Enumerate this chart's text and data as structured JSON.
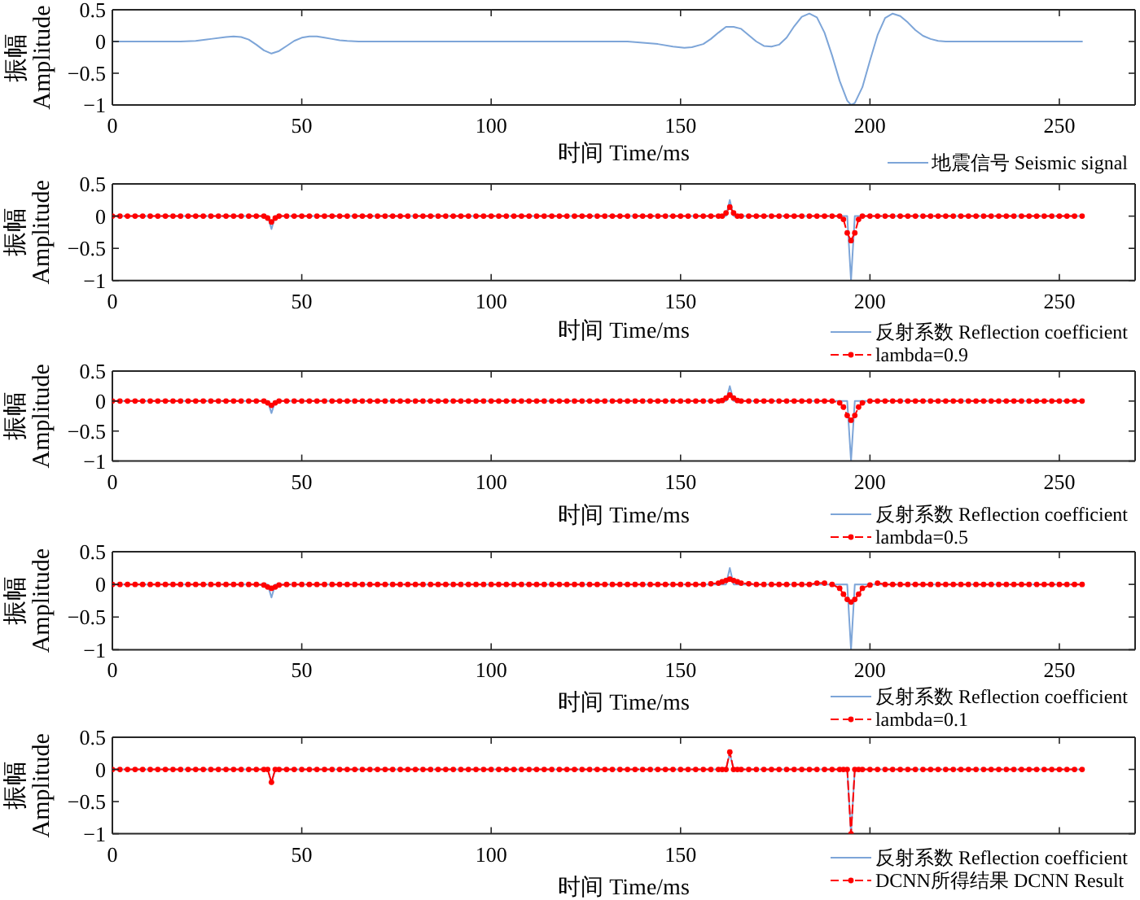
{
  "chart_data": [
    {
      "type": "line",
      "xlabel": "时间 Time/ms",
      "ylabel": "振幅\nAmplitude",
      "xlim": [
        0,
        270
      ],
      "xticks": [
        0,
        50,
        100,
        150,
        200,
        250
      ],
      "ylim": [
        -1,
        0.5
      ],
      "yticks": [
        -1,
        -0.5,
        0,
        0.5
      ],
      "legend": "bottom right",
      "x": [
        0,
        10,
        18,
        22,
        26,
        30,
        32,
        34,
        36,
        38,
        40,
        42,
        44,
        46,
        48,
        50,
        52,
        54,
        56,
        58,
        60,
        62,
        65,
        80,
        100,
        120,
        130,
        136,
        140,
        144,
        148,
        151,
        153,
        156,
        158,
        160,
        162,
        164,
        166,
        168,
        170,
        172,
        174,
        176,
        178,
        180,
        182,
        184,
        186,
        188,
        190,
        192,
        194,
        195,
        196,
        198,
        200,
        202,
        204,
        206,
        208,
        210,
        212,
        214,
        216,
        218,
        220,
        230,
        240,
        256
      ],
      "series": [
        {
          "name": "地震信号 Seismic signal",
          "color": "#7da5d8",
          "values": [
            0,
            0,
            0,
            0.01,
            0.04,
            0.07,
            0.08,
            0.07,
            0.03,
            -0.05,
            -0.14,
            -0.19,
            -0.15,
            -0.07,
            0.01,
            0.06,
            0.08,
            0.08,
            0.06,
            0.04,
            0.02,
            0.01,
            0,
            0,
            0,
            0,
            0,
            0,
            -0.02,
            -0.04,
            -0.08,
            -0.1,
            -0.09,
            -0.04,
            0.04,
            0.14,
            0.23,
            0.23,
            0.2,
            0.1,
            0,
            -0.07,
            -0.08,
            -0.05,
            0.06,
            0.24,
            0.39,
            0.44,
            0.38,
            0.14,
            -0.22,
            -0.62,
            -0.93,
            -1,
            -0.97,
            -0.72,
            -0.3,
            0.1,
            0.37,
            0.44,
            0.4,
            0.3,
            0.18,
            0.09,
            0.04,
            0.01,
            0,
            0,
            0,
            0
          ]
        }
      ]
    },
    {
      "type": "line",
      "xlabel": "时间 Time/ms",
      "ylabel": "振幅\nAmplitude",
      "xlim": [
        0,
        270
      ],
      "xticks": [
        0,
        50,
        100,
        150,
        200,
        250
      ],
      "ylim": [
        -1,
        0.5
      ],
      "yticks": [
        -1,
        -0.5,
        0,
        0.5
      ],
      "legend": "bottom right",
      "x": [
        0,
        2,
        4,
        6,
        8,
        10,
        12,
        14,
        16,
        18,
        20,
        22,
        24,
        26,
        28,
        30,
        32,
        34,
        36,
        38,
        40,
        41,
        42,
        43,
        44,
        46,
        48,
        50,
        52,
        54,
        56,
        58,
        60,
        62,
        64,
        66,
        68,
        70,
        72,
        74,
        76,
        78,
        80,
        82,
        84,
        86,
        88,
        90,
        92,
        94,
        96,
        98,
        100,
        102,
        104,
        106,
        108,
        110,
        112,
        114,
        116,
        118,
        120,
        122,
        124,
        126,
        128,
        130,
        132,
        134,
        136,
        138,
        140,
        142,
        144,
        146,
        148,
        150,
        152,
        154,
        156,
        158,
        160,
        161,
        162,
        163,
        164,
        165,
        166,
        168,
        170,
        172,
        174,
        176,
        178,
        180,
        182,
        184,
        186,
        188,
        190,
        192,
        193,
        194,
        195,
        196,
        197,
        198,
        200,
        202,
        204,
        206,
        208,
        210,
        212,
        214,
        216,
        218,
        220,
        222,
        224,
        226,
        228,
        230,
        232,
        234,
        236,
        238,
        240,
        242,
        244,
        246,
        248,
        250,
        252,
        254,
        256
      ],
      "series": [
        {
          "name": "反射系数 Reflection coefficient",
          "color": "#7da5d8",
          "x": [
            0,
            41,
            42,
            43,
            162,
            163,
            164,
            194,
            195,
            196,
            256
          ],
          "values": [
            0,
            0,
            -0.2,
            0,
            0,
            0.25,
            0,
            0,
            -1,
            0,
            0
          ]
        },
        {
          "name": "lambda=0.9",
          "color": "#ff0000",
          "line_style": "dashed",
          "marker": "circle",
          "values": [
            0,
            0,
            0,
            0,
            0,
            0,
            0,
            0,
            0,
            0,
            0,
            0,
            0,
            0,
            0,
            0,
            0,
            0,
            0,
            0,
            0,
            -0.03,
            -0.09,
            -0.03,
            0,
            0,
            0,
            0,
            0,
            0,
            0,
            0,
            0,
            0,
            0,
            0,
            0,
            0,
            0,
            0,
            0,
            0,
            0,
            0,
            0,
            0,
            0,
            0,
            0,
            0,
            0,
            0,
            0,
            0,
            0,
            0,
            0,
            0,
            0,
            0,
            0,
            0,
            0,
            0,
            0,
            0,
            0,
            0,
            0,
            0,
            0,
            0,
            0,
            0,
            0,
            0,
            0,
            0,
            0,
            0,
            0,
            0,
            0,
            0,
            0.05,
            0.14,
            0.05,
            0,
            0,
            0,
            0,
            0,
            0,
            0,
            0,
            0,
            0,
            0,
            0,
            0,
            0,
            0,
            -0.05,
            -0.26,
            -0.38,
            -0.26,
            -0.05,
            0,
            0,
            0,
            0,
            0,
            0,
            0,
            0,
            0,
            0,
            0,
            0,
            0,
            0,
            0,
            0,
            0,
            0,
            0,
            0,
            0,
            0,
            0,
            0,
            0,
            0,
            0,
            0,
            0,
            0
          ]
        }
      ]
    },
    {
      "type": "line",
      "xlabel": "时间 Time/ms",
      "ylabel": "振幅\nAmplitude",
      "xlim": [
        0,
        270
      ],
      "xticks": [
        0,
        50,
        100,
        150,
        200,
        250
      ],
      "ylim": [
        -1,
        0.5
      ],
      "yticks": [
        -1,
        -0.5,
        0,
        0.5
      ],
      "legend": "bottom right",
      "x": [
        0,
        2,
        4,
        6,
        8,
        10,
        12,
        14,
        16,
        18,
        20,
        22,
        24,
        26,
        28,
        30,
        32,
        34,
        36,
        38,
        40,
        41,
        42,
        43,
        44,
        46,
        48,
        50,
        52,
        54,
        56,
        58,
        60,
        62,
        64,
        66,
        68,
        70,
        72,
        74,
        76,
        78,
        80,
        82,
        84,
        86,
        88,
        90,
        92,
        94,
        96,
        98,
        100,
        102,
        104,
        106,
        108,
        110,
        112,
        114,
        116,
        118,
        120,
        122,
        124,
        126,
        128,
        130,
        132,
        134,
        136,
        138,
        140,
        142,
        144,
        146,
        148,
        150,
        152,
        154,
        156,
        158,
        160,
        161,
        162,
        163,
        164,
        165,
        166,
        168,
        170,
        172,
        174,
        176,
        178,
        180,
        182,
        184,
        186,
        188,
        190,
        192,
        193,
        194,
        195,
        196,
        197,
        198,
        200,
        202,
        204,
        206,
        208,
        210,
        212,
        214,
        216,
        218,
        220,
        222,
        224,
        226,
        228,
        230,
        232,
        234,
        236,
        238,
        240,
        242,
        244,
        246,
        248,
        250,
        252,
        254,
        256
      ],
      "series": [
        {
          "name": "反射系数 Reflection coefficient",
          "color": "#7da5d8",
          "x": [
            0,
            41,
            42,
            43,
            162,
            163,
            164,
            194,
            195,
            196,
            256
          ],
          "values": [
            0,
            0,
            -0.2,
            0,
            0,
            0.25,
            0,
            0,
            -1,
            0,
            0
          ]
        },
        {
          "name": "lambda=0.5",
          "color": "#ff0000",
          "line_style": "dashed",
          "marker": "circle",
          "values": [
            0,
            0,
            0,
            0,
            0,
            0,
            0,
            0,
            0,
            0,
            0,
            0,
            0,
            0,
            0,
            0,
            0,
            0,
            0,
            0,
            0,
            -0.03,
            -0.07,
            -0.03,
            0,
            0,
            0,
            0,
            0,
            0,
            0,
            0,
            0,
            0,
            0,
            0,
            0,
            0,
            0,
            0,
            0,
            0,
            0,
            0,
            0,
            0,
            0,
            0,
            0,
            0,
            0,
            0,
            0,
            0,
            0,
            0,
            0,
            0,
            0,
            0,
            0,
            0,
            0,
            0,
            0,
            0,
            0,
            0,
            0,
            0,
            0,
            0,
            0,
            0,
            0,
            0,
            0,
            0,
            0,
            0,
            0,
            0,
            0,
            0.01,
            0.05,
            0.1,
            0.05,
            0.01,
            0,
            0,
            0,
            0,
            0,
            0,
            0,
            0,
            0,
            0,
            0,
            0,
            0,
            -0.03,
            -0.1,
            -0.24,
            -0.32,
            -0.24,
            -0.1,
            -0.03,
            0,
            0,
            0,
            0,
            0,
            0,
            0,
            0,
            0,
            0,
            0,
            0,
            0,
            0,
            0,
            0,
            0,
            0,
            0,
            0,
            0,
            0,
            0,
            0,
            0,
            0,
            0,
            0,
            0
          ]
        }
      ]
    },
    {
      "type": "line",
      "xlabel": "时间 Time/ms",
      "ylabel": "振幅\nAmplitude",
      "xlim": [
        0,
        270
      ],
      "xticks": [
        0,
        50,
        100,
        150,
        200,
        250
      ],
      "ylim": [
        -1,
        0.5
      ],
      "yticks": [
        -1,
        -0.5,
        0,
        0.5
      ],
      "legend": "bottom right",
      "x": [
        0,
        2,
        4,
        6,
        8,
        10,
        12,
        14,
        16,
        18,
        20,
        22,
        24,
        26,
        28,
        30,
        32,
        34,
        36,
        38,
        40,
        41,
        42,
        43,
        44,
        46,
        48,
        50,
        52,
        54,
        56,
        58,
        60,
        62,
        64,
        66,
        68,
        70,
        72,
        74,
        76,
        78,
        80,
        82,
        84,
        86,
        88,
        90,
        92,
        94,
        96,
        98,
        100,
        102,
        104,
        106,
        108,
        110,
        112,
        114,
        116,
        118,
        120,
        122,
        124,
        126,
        128,
        130,
        132,
        134,
        136,
        138,
        140,
        142,
        144,
        146,
        148,
        150,
        152,
        154,
        156,
        158,
        160,
        161,
        162,
        163,
        164,
        165,
        166,
        168,
        170,
        172,
        174,
        176,
        178,
        180,
        182,
        184,
        186,
        188,
        190,
        192,
        193,
        194,
        195,
        196,
        197,
        198,
        200,
        202,
        204,
        206,
        208,
        210,
        212,
        214,
        216,
        218,
        220,
        222,
        224,
        226,
        228,
        230,
        232,
        234,
        236,
        238,
        240,
        242,
        244,
        246,
        248,
        250,
        252,
        254,
        256
      ],
      "series": [
        {
          "name": "反射系数 Reflection coefficient",
          "color": "#7da5d8",
          "x": [
            0,
            41,
            42,
            43,
            162,
            163,
            164,
            194,
            195,
            196,
            256
          ],
          "values": [
            0,
            0,
            -0.2,
            0,
            0,
            0.25,
            0,
            0,
            -1,
            0,
            0
          ]
        },
        {
          "name": "lambda=0.1",
          "color": "#ff0000",
          "line_style": "dashed",
          "marker": "circle",
          "values": [
            0,
            0,
            0,
            0,
            0,
            0,
            0,
            0,
            0,
            0,
            0,
            0,
            0,
            0,
            0,
            0,
            0,
            0,
            0,
            0,
            -0.01,
            -0.04,
            -0.06,
            -0.04,
            -0.01,
            0,
            0,
            0,
            0,
            0,
            0,
            0,
            0,
            0,
            0,
            0,
            0,
            0,
            0,
            0,
            0,
            0,
            0,
            0,
            0,
            0,
            0,
            0,
            0,
            0,
            0,
            0,
            0,
            0,
            0,
            0,
            0,
            0,
            0,
            0,
            0,
            0,
            0,
            0,
            0,
            0,
            0,
            0,
            0,
            0,
            0,
            0,
            0,
            0,
            0,
            0,
            0,
            0,
            0,
            0,
            0,
            0.01,
            0.02,
            0.04,
            0.06,
            0.08,
            0.06,
            0.04,
            0.02,
            0.01,
            0,
            0,
            0,
            0,
            0,
            0,
            0,
            0,
            0.02,
            0.02,
            0,
            -0.06,
            -0.15,
            -0.23,
            -0.27,
            -0.23,
            -0.15,
            -0.06,
            -0.01,
            0.02,
            0,
            0,
            0,
            0,
            0,
            0,
            0,
            0,
            0,
            0,
            0,
            0,
            0,
            0,
            0,
            0,
            0,
            0,
            0,
            0,
            0,
            0,
            0,
            0,
            0,
            0,
            0
          ]
        }
      ]
    },
    {
      "type": "line",
      "xlabel": "时间 Time/ms",
      "ylabel": "振幅\nAmplitude",
      "xlim": [
        0,
        270
      ],
      "xticks": [
        0,
        50,
        100,
        150,
        {
          "value": 200,
          "label": null
        },
        {
          "value": 250,
          "label": null
        }
      ],
      "ylim": [
        -1,
        0.5
      ],
      "yticks": [
        -1,
        -0.5,
        0,
        0.5
      ],
      "legend": "bottom right",
      "x": [
        0,
        2,
        4,
        6,
        8,
        10,
        12,
        14,
        16,
        18,
        20,
        22,
        24,
        26,
        28,
        30,
        32,
        34,
        36,
        38,
        40,
        41,
        42,
        43,
        44,
        46,
        48,
        50,
        52,
        54,
        56,
        58,
        60,
        62,
        64,
        66,
        68,
        70,
        72,
        74,
        76,
        78,
        80,
        82,
        84,
        86,
        88,
        90,
        92,
        94,
        96,
        98,
        100,
        102,
        104,
        106,
        108,
        110,
        112,
        114,
        116,
        118,
        120,
        122,
        124,
        126,
        128,
        130,
        132,
        134,
        136,
        138,
        140,
        142,
        144,
        146,
        148,
        150,
        152,
        154,
        156,
        158,
        160,
        161,
        162,
        163,
        164,
        165,
        166,
        168,
        170,
        172,
        174,
        176,
        178,
        180,
        182,
        184,
        186,
        188,
        190,
        192,
        193,
        194,
        195,
        196,
        197,
        198,
        200,
        202,
        204,
        206,
        208,
        210,
        212,
        214,
        216,
        218,
        220,
        222,
        224,
        226,
        228,
        230,
        232,
        234,
        236,
        238,
        240,
        242,
        244,
        246,
        248,
        250,
        252,
        254,
        256
      ],
      "series": [
        {
          "name": "反射系数 Reflection coefficient",
          "color": "#7da5d8",
          "x": [
            0,
            41,
            42,
            43,
            162,
            163,
            164,
            194,
            195,
            196,
            256
          ],
          "values": [
            0,
            0,
            -0.2,
            0,
            0,
            0.25,
            0,
            0,
            -1,
            0,
            0
          ]
        },
        {
          "name": "DCNN所得结果 DCNN Result",
          "color": "#ff0000",
          "line_style": "dashed",
          "marker": "circle",
          "values": [
            0,
            0,
            0,
            0,
            0,
            0,
            0,
            0,
            0,
            0,
            0,
            0,
            0,
            0,
            0,
            0,
            0,
            0,
            0,
            0,
            0,
            0,
            -0.2,
            0,
            0,
            0,
            0,
            0,
            0,
            0,
            0,
            0,
            0,
            0,
            0,
            0,
            0,
            0,
            0,
            0,
            0,
            0,
            0,
            0,
            0,
            0,
            0,
            0,
            0,
            0,
            0,
            0,
            0,
            0,
            0,
            0,
            0,
            0,
            0,
            0,
            0,
            0,
            0,
            0,
            0,
            0,
            0,
            0,
            0,
            0,
            0,
            0,
            0,
            0,
            0,
            0,
            0,
            0,
            0,
            0,
            0,
            0,
            0,
            0,
            0,
            0.27,
            0,
            0,
            0,
            0,
            0,
            0,
            0,
            0,
            0,
            0,
            0,
            0,
            0,
            0,
            0,
            0,
            0,
            0,
            -1,
            0,
            0,
            0,
            0,
            0,
            0,
            0,
            0,
            0,
            0,
            0,
            0,
            0,
            0,
            0,
            0,
            0,
            0,
            0,
            0,
            0,
            0,
            0,
            0,
            0,
            0,
            0,
            0,
            0,
            0,
            0,
            0
          ]
        }
      ]
    }
  ]
}
